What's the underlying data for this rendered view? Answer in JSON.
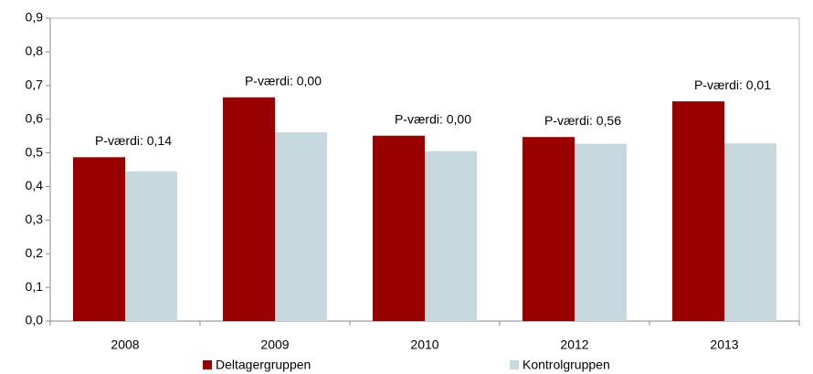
{
  "chart_data": {
    "type": "bar",
    "categories": [
      "2008",
      "2009",
      "2010",
      "2012",
      "2013"
    ],
    "series": [
      {
        "name": "Deltagergruppen",
        "color": "#990000",
        "values": [
          0.487,
          0.665,
          0.551,
          0.547,
          0.653
        ]
      },
      {
        "name": "Kontrolgruppen",
        "color": "#c5d9df",
        "values": [
          0.445,
          0.561,
          0.505,
          0.527,
          0.528
        ]
      }
    ],
    "annotations": [
      "P-værdi: 0,14",
      "P-værdi: 0,00",
      "P-værdi: 0,00",
      "P-værdi: 0,56",
      "P-værdi: 0,01"
    ],
    "ylim": [
      0,
      0.9
    ],
    "yticks": [
      {
        "value": 0,
        "label": "0,0"
      },
      {
        "value": 0.1,
        "label": "0,1"
      },
      {
        "value": 0.2,
        "label": "0,2"
      },
      {
        "value": 0.3,
        "label": "0,3"
      },
      {
        "value": 0.4,
        "label": "0,4"
      },
      {
        "value": 0.5,
        "label": "0,5"
      },
      {
        "value": 0.6,
        "label": "0,6"
      },
      {
        "value": 0.7,
        "label": "0,7"
      },
      {
        "value": 0.8,
        "label": "0,8"
      },
      {
        "value": 0.9,
        "label": "0,9"
      }
    ],
    "legend": "bottom"
  }
}
